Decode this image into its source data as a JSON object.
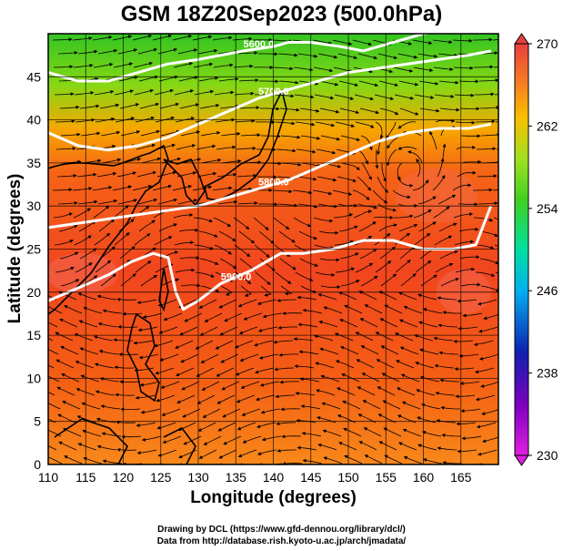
{
  "title": "GSM 18Z20Sep2023 (500.0hPa)",
  "xlabel": "Longitude (degrees)",
  "ylabel": "Latitude  (degrees)",
  "credits": [
    "Drawing by DCL (https://www.gfd-dennou.org/library/dcl/)",
    "Data from http://database.rish.kyoto-u.ac.jp/arch/jmadata/"
  ],
  "map": {
    "lon_range": [
      110,
      170
    ],
    "lat_range": [
      0,
      50
    ],
    "lon_ticks": [
      110,
      115,
      120,
      125,
      130,
      135,
      140,
      145,
      150,
      155,
      160,
      165
    ],
    "lat_ticks": [
      0,
      5,
      10,
      15,
      20,
      25,
      30,
      35,
      40,
      45
    ],
    "colorbar": {
      "min": 230,
      "max": 270,
      "tick_labels": [
        "230",
        "238",
        "246",
        "254",
        "262",
        "270"
      ]
    },
    "contours": [
      {
        "label": "5900.0",
        "points": [
          [
            110,
            19
          ],
          [
            114,
            20.5
          ],
          [
            118,
            22
          ],
          [
            121,
            23.5
          ],
          [
            124,
            24.5
          ],
          [
            126,
            24
          ],
          [
            127,
            20
          ],
          [
            128,
            18
          ],
          [
            130,
            19
          ],
          [
            133,
            21
          ],
          [
            137,
            22.5
          ],
          [
            141,
            24.5
          ],
          [
            144,
            24.5
          ],
          [
            148,
            25
          ],
          [
            152,
            26
          ],
          [
            156,
            26
          ],
          [
            160,
            25
          ],
          [
            164,
            25
          ],
          [
            167,
            25.5
          ],
          [
            169,
            30
          ]
        ]
      },
      {
        "label": "5800.0",
        "points": [
          [
            110,
            27.5
          ],
          [
            114,
            28
          ],
          [
            118,
            28.5
          ],
          [
            122,
            29
          ],
          [
            126,
            29.5
          ],
          [
            130,
            30
          ],
          [
            134,
            31
          ],
          [
            138,
            32
          ],
          [
            142,
            33
          ],
          [
            146,
            34.5
          ],
          [
            150,
            36
          ],
          [
            154,
            37.5
          ],
          [
            158,
            38.5
          ],
          [
            162,
            39
          ],
          [
            166,
            39
          ],
          [
            169,
            39.5
          ]
        ]
      },
      {
        "label": "5700.0",
        "points": [
          [
            110,
            38.5
          ],
          [
            114,
            37
          ],
          [
            118,
            36.5
          ],
          [
            122,
            37
          ],
          [
            126,
            38
          ],
          [
            130,
            39.5
          ],
          [
            134,
            41
          ],
          [
            138,
            42.5
          ],
          [
            142,
            43.5
          ],
          [
            146,
            44.5
          ],
          [
            150,
            45.5
          ],
          [
            154,
            46
          ],
          [
            158,
            46.5
          ],
          [
            162,
            47
          ],
          [
            166,
            47.5
          ],
          [
            169,
            48
          ]
        ]
      },
      {
        "label": "5600.0",
        "points": [
          [
            110,
            45.5
          ],
          [
            114,
            44.5
          ],
          [
            118,
            44.5
          ],
          [
            122,
            45.5
          ],
          [
            126,
            46.5
          ],
          [
            130,
            47
          ],
          [
            133,
            47.5
          ],
          [
            136,
            48
          ],
          [
            140,
            48.5
          ],
          [
            142,
            49
          ],
          [
            145,
            49
          ],
          [
            149,
            48.5
          ],
          [
            152,
            48
          ],
          [
            156,
            49
          ],
          [
            160,
            50
          ],
          [
            164,
            50.5
          ]
        ]
      }
    ]
  }
}
